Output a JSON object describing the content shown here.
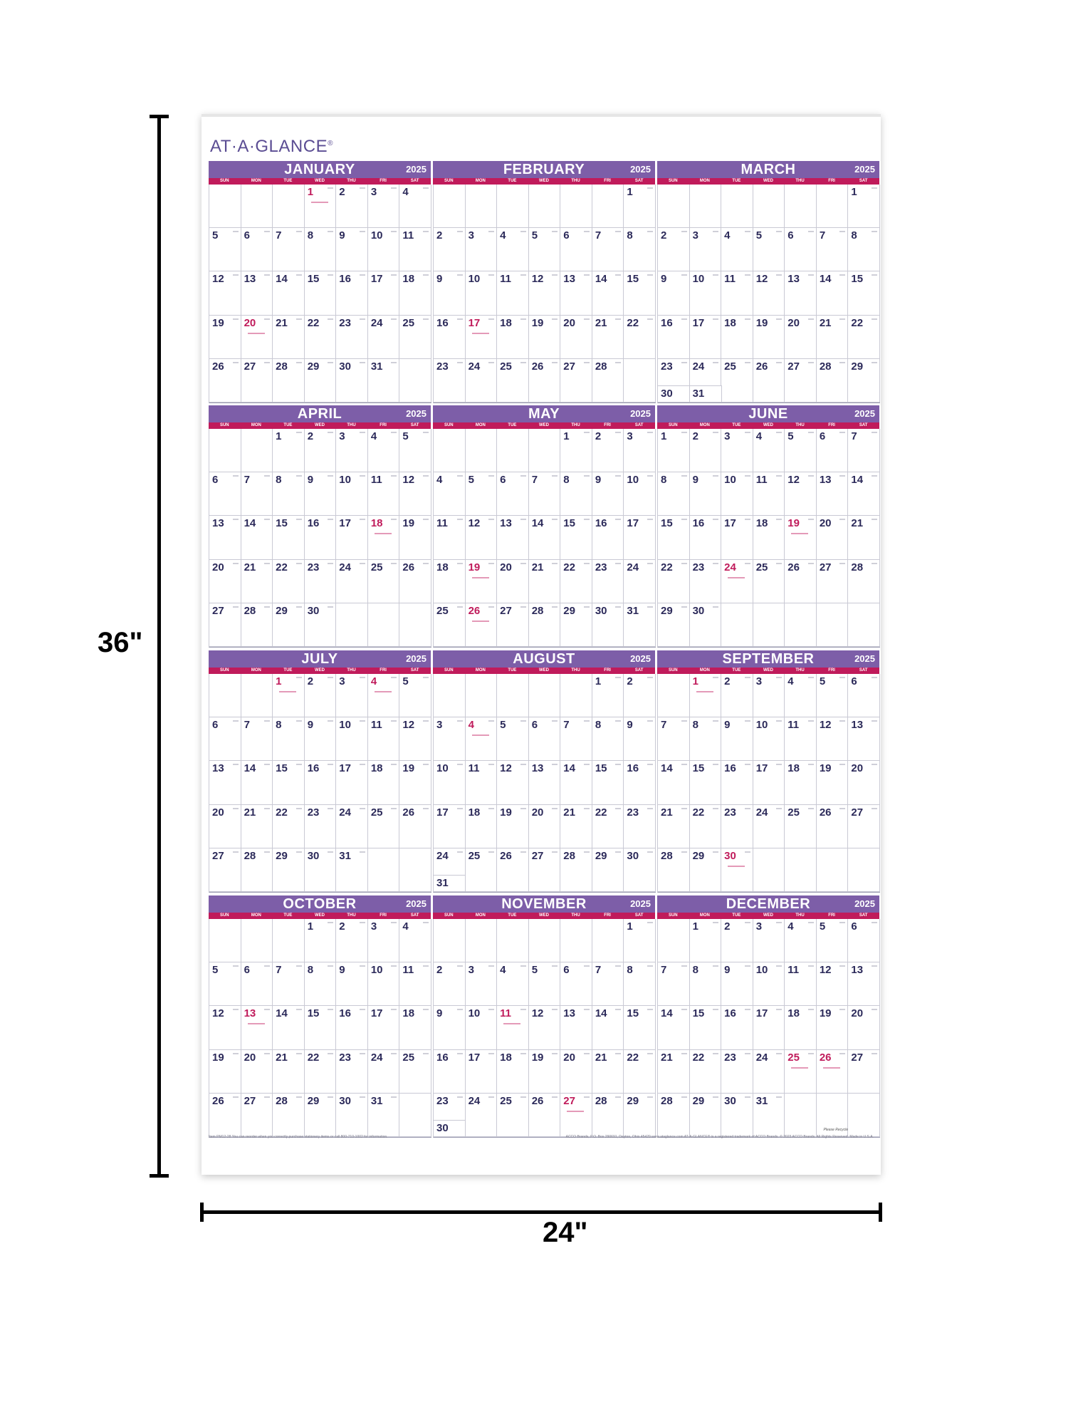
{
  "brand": {
    "name": "AT·A·GLANCE",
    "reg": "®"
  },
  "year": "2025",
  "dow": [
    "SUN",
    "MON",
    "TUE",
    "WED",
    "THU",
    "FRI",
    "SAT"
  ],
  "months": [
    {
      "name": "JANUARY",
      "start": 3,
      "days": 31,
      "red": [
        1,
        20
      ]
    },
    {
      "name": "FEBRUARY",
      "start": 6,
      "days": 28,
      "red": [
        17
      ]
    },
    {
      "name": "MARCH",
      "start": 6,
      "days": 31,
      "red": []
    },
    {
      "name": "APRIL",
      "start": 2,
      "days": 30,
      "red": [
        18
      ]
    },
    {
      "name": "MAY",
      "start": 4,
      "days": 31,
      "red": [
        19,
        26
      ]
    },
    {
      "name": "JUNE",
      "start": 0,
      "days": 30,
      "red": [
        19,
        24
      ]
    },
    {
      "name": "JULY",
      "start": 2,
      "days": 31,
      "red": [
        1,
        4
      ]
    },
    {
      "name": "AUGUST",
      "start": 5,
      "days": 31,
      "red": [
        4
      ]
    },
    {
      "name": "SEPTEMBER",
      "start": 1,
      "days": 30,
      "red": [
        1,
        30
      ]
    },
    {
      "name": "OCTOBER",
      "start": 3,
      "days": 31,
      "red": [
        13
      ]
    },
    {
      "name": "NOVEMBER",
      "start": 6,
      "days": 30,
      "red": [
        11,
        27
      ]
    },
    {
      "name": "DECEMBER",
      "start": 1,
      "days": 31,
      "red": [
        25,
        26
      ]
    }
  ],
  "footer": {
    "left": "Item PM12-28   You can reorder when you correctly purchase stationery items or call 800-710-1002 for information.",
    "right": "ACCO Brands, P.O. Box 290691, Dayton, Ohio 45429  www.ataglance.com  AT-A-GLANCE® is a registered trademark of ACCO Brands. © 2023 ACCO Brands. All Rights Reserved. Made in U.S.A.",
    "recycle": "Please Recycle"
  },
  "dimensions": {
    "height_label": "36\"",
    "width_label": "24\""
  }
}
